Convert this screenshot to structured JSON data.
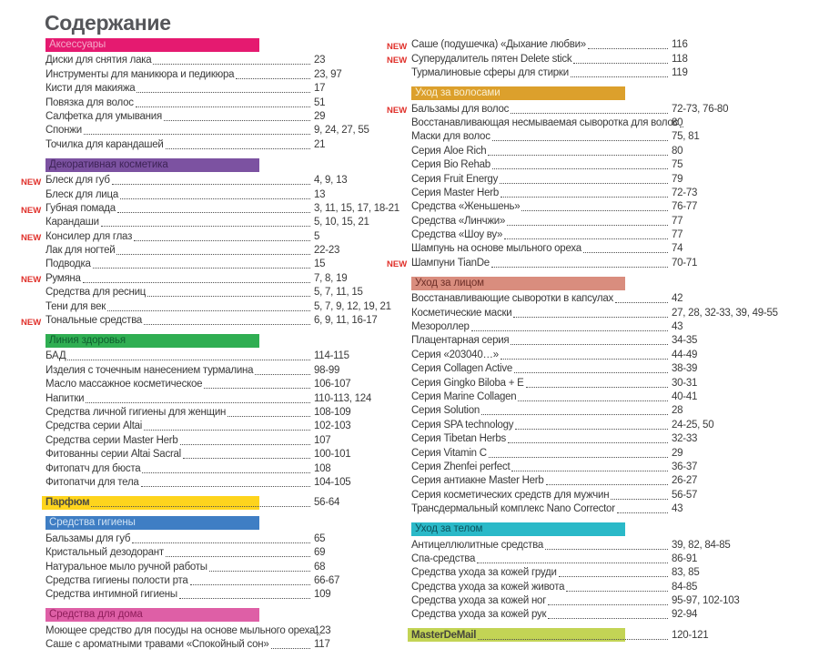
{
  "page_title": "Содержание",
  "new_label": "NEW",
  "colors": {
    "new_badge": "#e0312b",
    "body_text": "#3a3a3a",
    "title_text": "#55565a",
    "dot_leader": "#4f4f4f"
  },
  "columns": [
    {
      "sections": [
        {
          "title": "Аксессуары",
          "bar_color": "#e51a70",
          "bar_text_color": "#f4a9c9",
          "items": [
            {
              "label": "Диски для снятия лака",
              "pages": "23"
            },
            {
              "label": "Инструменты для маникюра и педикюра",
              "pages": "23, 97"
            },
            {
              "label": "Кисти для макияжа",
              "pages": "17"
            },
            {
              "label": "Повязка для волос",
              "pages": "51"
            },
            {
              "label": "Салфетка для умывания",
              "pages": "29"
            },
            {
              "label": "Спонжи",
              "pages": "9, 24, 27, 55"
            },
            {
              "label": "Точилка для карандашей",
              "pages": "21"
            }
          ]
        },
        {
          "title": "Декоративная косметика",
          "bar_color": "#7c52a1",
          "bar_text_color": "#3e2356",
          "items": [
            {
              "label": "Блеск для губ",
              "pages": "4, 9, 13",
              "new": true
            },
            {
              "label": "Блеск для лица",
              "pages": "13"
            },
            {
              "label": "Губная помада",
              "pages": "3, 11, 15, 17, 18-21",
              "new": true
            },
            {
              "label": "Карандаши",
              "pages": "5, 10, 15, 21"
            },
            {
              "label": "Консилер для глаз",
              "pages": "5",
              "new": true
            },
            {
              "label": "Лак для ногтей",
              "pages": "22-23"
            },
            {
              "label": "Подводка",
              "pages": "15"
            },
            {
              "label": "Румяна",
              "pages": "7, 8, 19",
              "new": true
            },
            {
              "label": "Средства для ресниц",
              "pages": "5, 7, 11, 15"
            },
            {
              "label": "Тени для век",
              "pages": "5, 7, 9, 12, 19, 21"
            },
            {
              "label": "Тональные средства",
              "pages": "6, 9, 11, 16-17",
              "new": true
            }
          ]
        },
        {
          "title": "Линия здоровья",
          "bar_color": "#2fae52",
          "bar_text_color": "#0f5e2f",
          "items": [
            {
              "label": "БАД",
              "pages": "114-115"
            },
            {
              "label": "Изделия с точечным нанесением турмалина",
              "pages": "98-99"
            },
            {
              "label": "Масло массажное косметическое",
              "pages": "106-107"
            },
            {
              "label": "Напитки",
              "pages": "110-113, 124"
            },
            {
              "label": "Средства личной гигиены для женщин",
              "pages": "108-109"
            },
            {
              "label": "Средства серии Altai",
              "pages": "102-103"
            },
            {
              "label": "Средства серии Master Herb",
              "pages": "107"
            },
            {
              "label": "Фитованны серии Altai Sacral",
              "pages": "100-101"
            },
            {
              "label": "Фитопатч для бюста",
              "pages": "108"
            },
            {
              "label": "Фитопатчи для тела",
              "pages": "104-105"
            }
          ]
        },
        {
          "title": "Парфюм",
          "bar_color": "#fed41d",
          "bar_text_color": "#4a4a42",
          "pages": "56-64",
          "items": []
        },
        {
          "title": "Средства гигиены",
          "bar_color": "#3f7ec4",
          "bar_text_color": "#cfe2f4",
          "items": [
            {
              "label": "Бальзамы для губ",
              "pages": "65"
            },
            {
              "label": "Кристальный дезодорант",
              "pages": "69"
            },
            {
              "label": "Натуральное мыло ручной работы",
              "pages": "68"
            },
            {
              "label": "Средства гигиены полости рта",
              "pages": "66-67"
            },
            {
              "label": "Средства интимной гигиены",
              "pages": "109"
            }
          ]
        },
        {
          "title": "Средства для дома",
          "bar_color": "#de5fa6",
          "bar_text_color": "#8e1d5a",
          "items": [
            {
              "label": "Моющее средство для посуды на основе мыльного ореха",
              "pages": "123"
            },
            {
              "label": "Саше с ароматными травами «Спокойный сон»",
              "pages": "117"
            }
          ]
        }
      ]
    },
    {
      "sections": [
        {
          "title": null,
          "items": [
            {
              "label": "Саше (подушечка) «Дыхание любви»",
              "pages": "116",
              "new": true
            },
            {
              "label": "Суперудалитель пятен Delete stick",
              "pages": "118",
              "new": true
            },
            {
              "label": "Турмалиновые сферы для стирки",
              "pages": "119"
            }
          ]
        },
        {
          "title": "Уход за волосами",
          "bar_color": "#dca02c",
          "bar_text_color": "#f9efd2",
          "items": [
            {
              "label": "Бальзамы для волос",
              "pages": "72-73, 76-80",
              "new": true
            },
            {
              "label": "Восстанавливающая несмываемая сыворотка для волос",
              "pages": "80"
            },
            {
              "label": "Маски для волос",
              "pages": "75, 81"
            },
            {
              "label": "Серия Aloe Rich",
              "pages": "80"
            },
            {
              "label": "Серия Bio Rehab",
              "pages": "75"
            },
            {
              "label": "Серия Fruit Energy",
              "pages": "79"
            },
            {
              "label": "Серия Master Herb",
              "pages": "72-73"
            },
            {
              "label": "Средства «Женьшень»",
              "pages": "76-77"
            },
            {
              "label": "Средства «Линчжи»",
              "pages": "77"
            },
            {
              "label": "Средства «Шоу ву»",
              "pages": "77"
            },
            {
              "label": "Шампунь на основе мыльного ореха",
              "pages": "74"
            },
            {
              "label": "Шампуни TianDe",
              "pages": "70-71",
              "new": true
            }
          ]
        },
        {
          "title": "Уход за лицом",
          "bar_color": "#d98d7e",
          "bar_text_color": "#6e2f28",
          "items": [
            {
              "label": "Восстанавливающие сыворотки в капсулах",
              "pages": "42"
            },
            {
              "label": "Косметические маски",
              "pages": "27, 28, 32-33, 39, 49-55"
            },
            {
              "label": "Мезороллер",
              "pages": "43"
            },
            {
              "label": "Плацентарная серия",
              "pages": "34-35"
            },
            {
              "label": "Серия «203040…»",
              "pages": "44-49"
            },
            {
              "label": "Серия Collagen Active",
              "pages": "38-39"
            },
            {
              "label": "Серия Gingko Biloba + E",
              "pages": "30-31"
            },
            {
              "label": "Серия Marine Collagen",
              "pages": "40-41"
            },
            {
              "label": "Серия Solution",
              "pages": "28"
            },
            {
              "label": "Серия SPA technology",
              "pages": "24-25, 50"
            },
            {
              "label": "Серия Tibetan Herbs",
              "pages": "32-33"
            },
            {
              "label": "Серия Vitamin C",
              "pages": "29"
            },
            {
              "label": "Серия Zhenfei perfect",
              "pages": "36-37"
            },
            {
              "label": "Серия антиакне Master Herb",
              "pages": "26-27"
            },
            {
              "label": "Серия косметических средств для мужчин",
              "pages": "56-57"
            },
            {
              "label": "Трансдермальный комплекс Nano Corrector",
              "pages": "43"
            }
          ]
        },
        {
          "title": "Уход за телом",
          "bar_color": "#2ab9c8",
          "bar_text_color": "#0c515b",
          "items": [
            {
              "label": "Антицеллюлитные средства",
              "pages": "39, 82, 84-85"
            },
            {
              "label": "Спа-средства",
              "pages": "86-91"
            },
            {
              "label": "Средства ухода за кожей груди",
              "pages": "83, 85"
            },
            {
              "label": "Средства ухода за кожей живота",
              "pages": "84-85"
            },
            {
              "label": "Средства ухода за кожей ног",
              "pages": "95-97, 102-103"
            },
            {
              "label": "Средства ухода за кожей рук",
              "pages": "92-94"
            }
          ]
        },
        {
          "title": "MasterDeMail",
          "bar_color": "#c3d455",
          "bar_text_color": "#46463c",
          "pages": "120-121",
          "items": []
        }
      ]
    }
  ]
}
